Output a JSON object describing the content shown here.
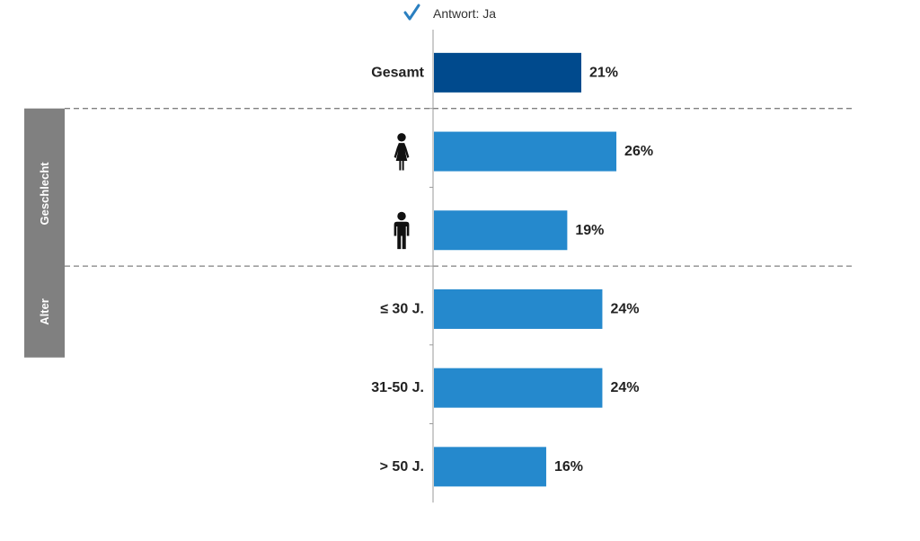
{
  "chart_data": {
    "type": "bar",
    "orientation": "horizontal",
    "legend": {
      "label": "Antwort: Ja",
      "icon": "checkmark-icon",
      "position": "top"
    },
    "categories": [
      "Gesamt",
      "female-icon",
      "male-icon",
      "≤ 30 J.",
      "31-50 J.",
      "> 50 J."
    ],
    "category_labels": [
      "Gesamt",
      "",
      "",
      "≤ 30 J.",
      "31-50 J.",
      "> 50 J."
    ],
    "category_icons": [
      "",
      "female-icon",
      "male-icon",
      "",
      "",
      ""
    ],
    "values": [
      21,
      26,
      19,
      24,
      24,
      16
    ],
    "value_labels": [
      "21%",
      "26%",
      "19%",
      "24%",
      "24%",
      "16%"
    ],
    "unit": "%",
    "groups": [
      {
        "label": "Geschlecht",
        "members": [
          1,
          2
        ]
      },
      {
        "label": "Alter",
        "members": [
          3,
          4,
          5
        ]
      }
    ],
    "colors": {
      "total_bar": "#004a8d",
      "bar": "#2589cd",
      "group_box": "#808080",
      "checkmark": "#2a7fc0",
      "divider": "#808080",
      "axis": "#9a9a9a"
    },
    "grid": false
  }
}
